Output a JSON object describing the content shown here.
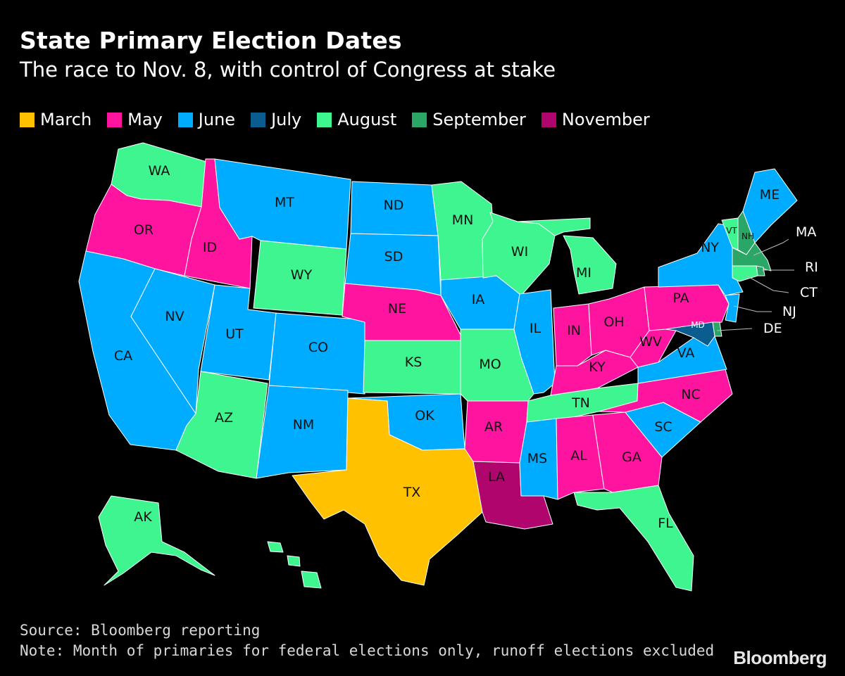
{
  "title": "State Primary Election Dates",
  "subtitle": "The race to Nov. 8, with control of Congress at stake",
  "legend": [
    {
      "label": "March",
      "color": "#ffc100"
    },
    {
      "label": "May",
      "color": "#ff14a0"
    },
    {
      "label": "June",
      "color": "#00acff"
    },
    {
      "label": "July",
      "color": "#0b5c8f"
    },
    {
      "label": "August",
      "color": "#3ff58f"
    },
    {
      "label": "September",
      "color": "#2aa667"
    },
    {
      "label": "November",
      "color": "#b0056c"
    }
  ],
  "states": [
    {
      "abbr": "WA",
      "month": "August"
    },
    {
      "abbr": "OR",
      "month": "May"
    },
    {
      "abbr": "CA",
      "month": "June"
    },
    {
      "abbr": "ID",
      "month": "May"
    },
    {
      "abbr": "NV",
      "month": "June"
    },
    {
      "abbr": "MT",
      "month": "June"
    },
    {
      "abbr": "WY",
      "month": "August"
    },
    {
      "abbr": "UT",
      "month": "June"
    },
    {
      "abbr": "CO",
      "month": "June"
    },
    {
      "abbr": "AZ",
      "month": "August"
    },
    {
      "abbr": "NM",
      "month": "June"
    },
    {
      "abbr": "ND",
      "month": "June"
    },
    {
      "abbr": "SD",
      "month": "June"
    },
    {
      "abbr": "NE",
      "month": "May"
    },
    {
      "abbr": "KS",
      "month": "August"
    },
    {
      "abbr": "OK",
      "month": "June"
    },
    {
      "abbr": "TX",
      "month": "March"
    },
    {
      "abbr": "MN",
      "month": "August"
    },
    {
      "abbr": "IA",
      "month": "June"
    },
    {
      "abbr": "MO",
      "month": "August"
    },
    {
      "abbr": "AR",
      "month": "May"
    },
    {
      "abbr": "LA",
      "month": "November"
    },
    {
      "abbr": "WI",
      "month": "August"
    },
    {
      "abbr": "IL",
      "month": "June"
    },
    {
      "abbr": "MI",
      "month": "August"
    },
    {
      "abbr": "IN",
      "month": "May"
    },
    {
      "abbr": "OH",
      "month": "May"
    },
    {
      "abbr": "KY",
      "month": "May"
    },
    {
      "abbr": "TN",
      "month": "August"
    },
    {
      "abbr": "MS",
      "month": "June"
    },
    {
      "abbr": "AL",
      "month": "May"
    },
    {
      "abbr": "GA",
      "month": "May"
    },
    {
      "abbr": "FL",
      "month": "August"
    },
    {
      "abbr": "SC",
      "month": "June"
    },
    {
      "abbr": "NC",
      "month": "May"
    },
    {
      "abbr": "VA",
      "month": "June"
    },
    {
      "abbr": "WV",
      "month": "May"
    },
    {
      "abbr": "PA",
      "month": "May"
    },
    {
      "abbr": "NY",
      "month": "June"
    },
    {
      "abbr": "VT",
      "month": "August"
    },
    {
      "abbr": "NH",
      "month": "September"
    },
    {
      "abbr": "ME",
      "month": "June"
    },
    {
      "abbr": "MA",
      "month": "September"
    },
    {
      "abbr": "RI",
      "month": "September"
    },
    {
      "abbr": "CT",
      "month": "August"
    },
    {
      "abbr": "NJ",
      "month": "June"
    },
    {
      "abbr": "DE",
      "month": "September"
    },
    {
      "abbr": "MD",
      "month": "July"
    },
    {
      "abbr": "AK",
      "month": "August"
    },
    {
      "abbr": "HI",
      "month": "August"
    }
  ],
  "source": "Source: Bloomberg reporting",
  "note": "Note: Month of primaries for federal elections only, runoff elections excluded",
  "brand": "Bloomberg"
}
